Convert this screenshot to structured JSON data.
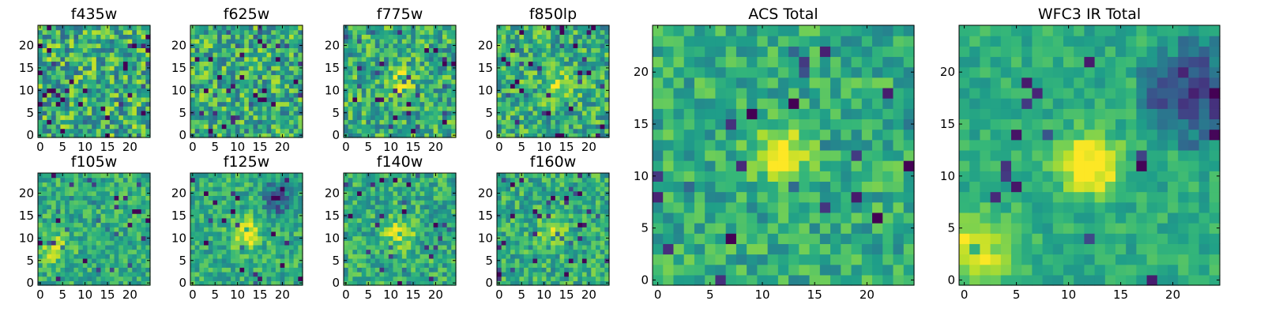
{
  "chart_data": [
    {
      "type": "heatmap",
      "title": "f435w",
      "xticks": [
        0,
        5,
        10,
        15,
        20
      ],
      "yticks": [
        0,
        5,
        10,
        15,
        20
      ],
      "xlim": [
        0,
        24
      ],
      "ylim": [
        0,
        24
      ],
      "grid_size": 25,
      "colormap": "viridis",
      "sources": [],
      "noise": 0.6,
      "dark_cells": 0.07,
      "seed": 11
    },
    {
      "type": "heatmap",
      "title": "f625w",
      "xticks": [
        0,
        5,
        10,
        15,
        20
      ],
      "yticks": [
        0,
        5,
        10,
        15,
        20
      ],
      "xlim": [
        0,
        24
      ],
      "ylim": [
        0,
        24
      ],
      "grid_size": 25,
      "colormap": "viridis",
      "sources": [],
      "noise": 0.55,
      "dark_cells": 0.06,
      "seed": 23
    },
    {
      "type": "heatmap",
      "title": "f775w",
      "xticks": [
        0,
        5,
        10,
        15,
        20
      ],
      "yticks": [
        0,
        5,
        10,
        15,
        20
      ],
      "xlim": [
        0,
        24
      ],
      "ylim": [
        0,
        24
      ],
      "grid_size": 25,
      "colormap": "viridis",
      "sources": [
        {
          "x": 12,
          "y": 12,
          "amp": 0.35,
          "sigma": 1.8
        }
      ],
      "noise": 0.5,
      "dark_cells": 0.07,
      "seed": 37
    },
    {
      "type": "heatmap",
      "title": "f850lp",
      "xticks": [
        0,
        5,
        10,
        15,
        20
      ],
      "yticks": [
        0,
        5,
        10,
        15,
        20
      ],
      "xlim": [
        0,
        24
      ],
      "ylim": [
        0,
        24
      ],
      "grid_size": 25,
      "colormap": "viridis",
      "sources": [
        {
          "x": 13,
          "y": 11,
          "amp": 0.35,
          "sigma": 1.8
        }
      ],
      "noise": 0.5,
      "dark_cells": 0.06,
      "seed": 41
    },
    {
      "type": "heatmap",
      "title": "f105w",
      "xticks": [
        0,
        5,
        10,
        15,
        20
      ],
      "yticks": [
        0,
        5,
        10,
        15,
        20
      ],
      "xlim": [
        0,
        24
      ],
      "ylim": [
        0,
        24
      ],
      "grid_size": 25,
      "colormap": "viridis",
      "sources": [
        {
          "x": 3,
          "y": 8,
          "amp": 0.25,
          "sigma": 2.5
        }
      ],
      "noise": 0.35,
      "dark_cells": 0.04,
      "seed": 53
    },
    {
      "type": "heatmap",
      "title": "f125w",
      "xticks": [
        0,
        5,
        10,
        15,
        20
      ],
      "yticks": [
        0,
        5,
        10,
        15,
        20
      ],
      "xlim": [
        0,
        24
      ],
      "ylim": [
        0,
        24
      ],
      "grid_size": 25,
      "colormap": "viridis",
      "sources": [
        {
          "x": 12,
          "y": 11,
          "amp": 0.4,
          "sigma": 2.2
        }
      ],
      "noise": 0.35,
      "dark_cells": 0.04,
      "seed": 67,
      "dark_region": {
        "x": 19,
        "y": 19,
        "r": 4
      }
    },
    {
      "type": "heatmap",
      "title": "f140w",
      "xticks": [
        0,
        5,
        10,
        15,
        20
      ],
      "yticks": [
        0,
        5,
        10,
        15,
        20
      ],
      "xlim": [
        0,
        24
      ],
      "ylim": [
        0,
        24
      ],
      "grid_size": 25,
      "colormap": "viridis",
      "sources": [
        {
          "x": 12,
          "y": 11,
          "amp": 0.35,
          "sigma": 2.0
        }
      ],
      "noise": 0.4,
      "dark_cells": 0.05,
      "seed": 71
    },
    {
      "type": "heatmap",
      "title": "f160w",
      "xticks": [
        0,
        5,
        10,
        15,
        20
      ],
      "yticks": [
        0,
        5,
        10,
        15,
        20
      ],
      "xlim": [
        0,
        24
      ],
      "ylim": [
        0,
        24
      ],
      "grid_size": 25,
      "colormap": "viridis",
      "sources": [
        {
          "x": 12,
          "y": 12,
          "amp": 0.35,
          "sigma": 2.0
        }
      ],
      "noise": 0.4,
      "dark_cells": 0.05,
      "seed": 83
    },
    {
      "type": "heatmap",
      "title": "ACS Total",
      "xticks": [
        0,
        5,
        10,
        15,
        20
      ],
      "yticks": [
        0,
        5,
        10,
        15,
        20
      ],
      "xlim": [
        0,
        24
      ],
      "ylim": [
        0,
        24
      ],
      "grid_size": 25,
      "colormap": "viridis",
      "sources": [
        {
          "x": 12,
          "y": 12,
          "amp": 0.45,
          "sigma": 1.9
        }
      ],
      "noise": 0.35,
      "dark_cells": 0.04,
      "seed": 97
    },
    {
      "type": "heatmap",
      "title": "WFC3 IR Total",
      "xticks": [
        0,
        5,
        10,
        15,
        20
      ],
      "yticks": [
        0,
        5,
        10,
        15,
        20
      ],
      "xlim": [
        0,
        24
      ],
      "ylim": [
        0,
        24
      ],
      "grid_size": 25,
      "colormap": "viridis",
      "sources": [
        {
          "x": 12,
          "y": 11,
          "amp": 0.5,
          "sigma": 2.0
        },
        {
          "x": 1,
          "y": 3,
          "amp": 0.35,
          "sigma": 2.5
        }
      ],
      "noise": 0.22,
      "dark_cells": 0.03,
      "seed": 101,
      "dark_region": {
        "x": 22,
        "y": 18,
        "r": 6
      }
    }
  ]
}
